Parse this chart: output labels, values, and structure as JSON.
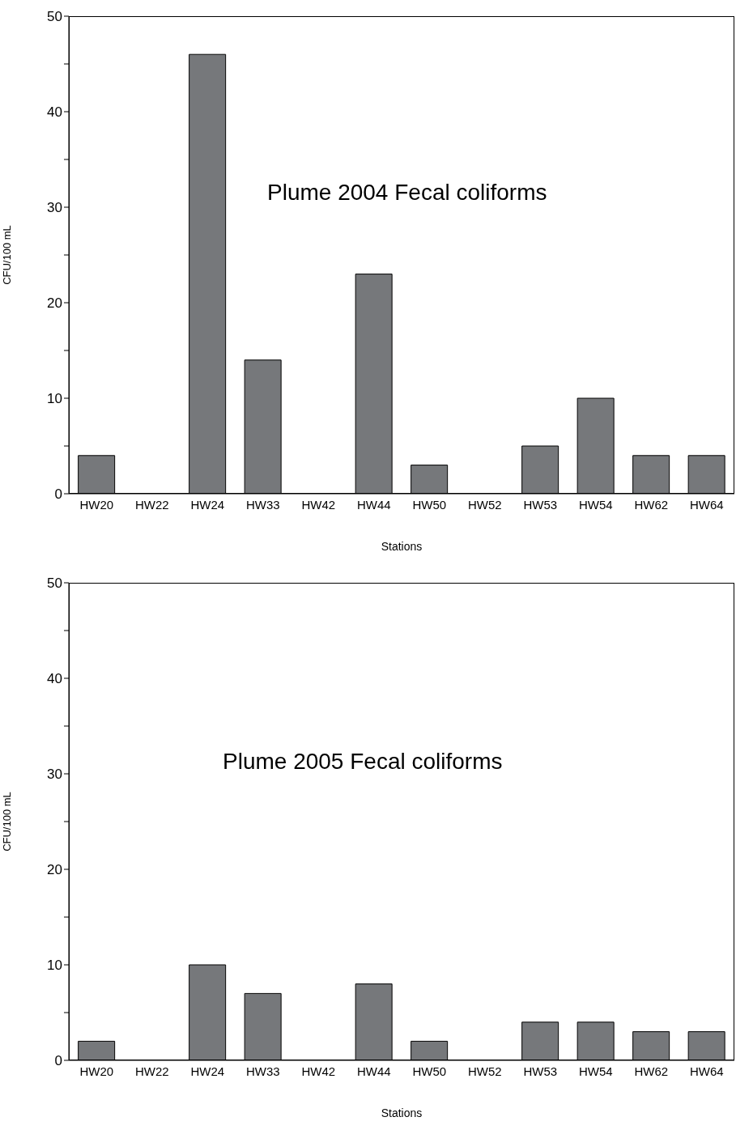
{
  "chart_data": [
    {
      "type": "bar",
      "title": "Plume 2004 Fecal coliforms",
      "xlabel": "Stations",
      "ylabel": "CFU/100 mL",
      "categories": [
        "HW20",
        "HW22",
        "HW24",
        "HW33",
        "HW42",
        "HW44",
        "HW50",
        "HW52",
        "HW53",
        "HW54",
        "HW62",
        "HW64"
      ],
      "values": [
        4,
        0,
        46,
        14,
        0,
        23,
        3,
        0,
        5,
        10,
        4,
        4
      ],
      "color": "#76787b",
      "ylim": [
        0,
        50
      ],
      "yticks": [
        0,
        {
          "value": 5,
          "label": null
        },
        10,
        {
          "value": 15,
          "label": null
        },
        20,
        {
          "value": 25,
          "label": null
        },
        30,
        {
          "value": 35,
          "label": null
        },
        40,
        {
          "value": 45,
          "label": null
        },
        50
      ]
    },
    {
      "type": "bar",
      "title": "Plume 2005 Fecal coliforms",
      "xlabel": "Stations",
      "ylabel": "CFU/100 mL",
      "categories": [
        "HW20",
        "HW22",
        "HW24",
        "HW33",
        "HW42",
        "HW44",
        "HW50",
        "HW52",
        "HW53",
        "HW54",
        "HW62",
        "HW64"
      ],
      "values": [
        2,
        0,
        10,
        7,
        0,
        8,
        2,
        0,
        4,
        4,
        3,
        3
      ],
      "color": "#76787b",
      "ylim": [
        0,
        50
      ],
      "yticks": [
        0,
        {
          "value": 5,
          "label": null
        },
        10,
        {
          "value": 15,
          "label": null
        },
        20,
        {
          "value": 25,
          "label": null
        },
        30,
        {
          "value": 35,
          "label": null
        },
        40,
        {
          "value": 45,
          "label": null
        },
        50
      ]
    }
  ]
}
